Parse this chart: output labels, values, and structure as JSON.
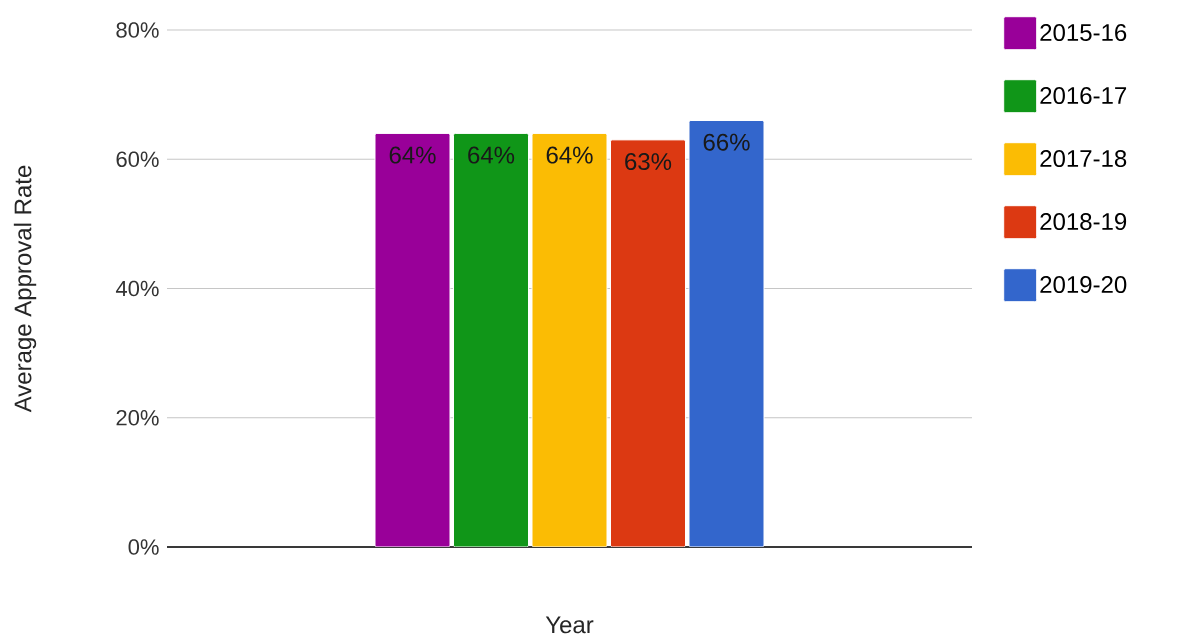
{
  "chart_data": {
    "type": "bar",
    "xlabel": "Year",
    "ylabel": "Average Approval Rate",
    "categories": [
      null
    ],
    "series": [
      {
        "name": "2015-16",
        "color": "#990099",
        "values": [
          64
        ],
        "value_labels": [
          "64%"
        ]
      },
      {
        "name": "2016-17",
        "color": "#109618",
        "values": [
          64
        ],
        "value_labels": [
          "64%"
        ]
      },
      {
        "name": "2017-18",
        "color": "#fbbc04",
        "values": [
          64
        ],
        "value_labels": [
          "64%"
        ]
      },
      {
        "name": "2018-19",
        "color": "#dc3912",
        "values": [
          63
        ],
        "value_labels": [
          "63%"
        ]
      },
      {
        "name": "2019-20",
        "color": "#3366cc",
        "values": [
          66
        ],
        "value_labels": [
          "66%"
        ]
      }
    ],
    "ylim": [
      0,
      80
    ],
    "yticks": [
      {
        "value": 0,
        "label": "0%"
      },
      {
        "value": 20,
        "label": "20%"
      },
      {
        "value": 40,
        "label": "40%"
      },
      {
        "value": 60,
        "label": "60%"
      },
      {
        "value": 80,
        "label": "80%"
      }
    ],
    "grid": "y",
    "legend": "right"
  }
}
